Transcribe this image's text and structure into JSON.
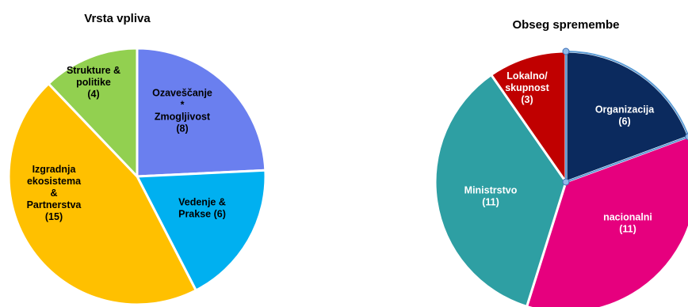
{
  "chart_data": [
    {
      "type": "pie",
      "title": "Vrsta vpliva",
      "slices": [
        {
          "lines": [
            "Ozaveščanje",
            "*",
            "Zmogljivost",
            "(8)"
          ],
          "value": 8,
          "color": "#6A7FEF",
          "text_color": "#000000"
        },
        {
          "lines": [
            "Vedenje &",
            "Prakse (6)"
          ],
          "value": 6,
          "color": "#00B0F0",
          "text_color": "#000000"
        },
        {
          "lines": [
            "Izgradnja",
            "ekosistema",
            "&",
            "Partnerstva",
            "(15)"
          ],
          "value": 15,
          "color": "#FFC000",
          "text_color": "#000000"
        },
        {
          "lines": [
            "Strukture &",
            "politike",
            "(4)"
          ],
          "value": 4,
          "color": "#92D050",
          "text_color": "#000000"
        }
      ]
    },
    {
      "type": "pie",
      "title": "Obseg spremembe",
      "slices": [
        {
          "lines": [
            "Organizacija",
            "(6)"
          ],
          "value": 6,
          "color": "#0B2A5E",
          "text_color": "#ffffff"
        },
        {
          "lines": [
            "nacionalni",
            "(11)"
          ],
          "value": 11,
          "color": "#E6007E",
          "text_color": "#ffffff"
        },
        {
          "lines": [
            "Ministrstvo",
            "(11)"
          ],
          "value": 11,
          "color": "#2E9FA3",
          "text_color": "#ffffff"
        },
        {
          "lines": [
            "Lokalno/",
            "skupnost",
            "(3)"
          ],
          "value": 3,
          "color": "#C00000",
          "text_color": "#ffffff"
        }
      ]
    }
  ]
}
